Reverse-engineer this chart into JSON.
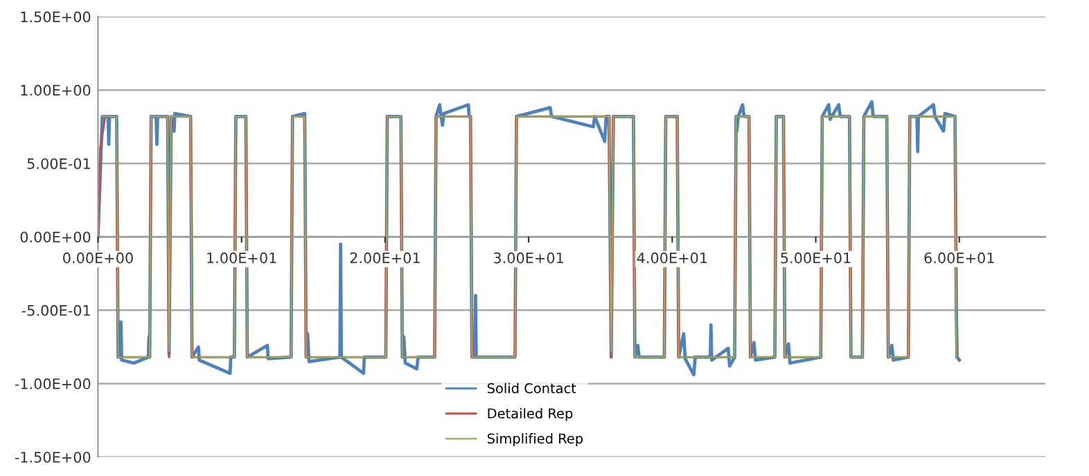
{
  "chart_data": {
    "type": "line",
    "xlim": [
      0,
      66
    ],
    "xticks": [
      {
        "value": 0,
        "label": "0.00E+00"
      },
      {
        "value": 10,
        "label": "1.00E+01"
      },
      {
        "value": 20,
        "label": "2.00E+01"
      },
      {
        "value": 30,
        "label": "3.00E+01"
      },
      {
        "value": 40,
        "label": "4.00E+01"
      },
      {
        "value": 50,
        "label": "5.00E+01"
      },
      {
        "value": 60,
        "label": "6.00E+01"
      }
    ],
    "ylim": [
      -1.5,
      1.5
    ],
    "yticks": [
      {
        "value": 1.5,
        "label": "1.50E+00"
      },
      {
        "value": 1.0,
        "label": "1.00E+00"
      },
      {
        "value": 0.5,
        "label": "5.00E-01"
      },
      {
        "value": 0,
        "label": "0.00E+00"
      },
      {
        "value": -0.5,
        "label": "-5.00E-01"
      },
      {
        "value": -1.0,
        "label": "-1.00E+00"
      },
      {
        "value": -1.5,
        "label": "-1.50E+00"
      }
    ],
    "grid": "y",
    "legend": "bottom",
    "marker": "none",
    "line_style": "solid",
    "series": [
      {
        "name": "Solid Contact",
        "color": "#4f81bd",
        "x": [
          0,
          0.3,
          0.7,
          0.75,
          0.8,
          1.3,
          1.4,
          1.55,
          1.6,
          1.65,
          2.5,
          3.5,
          3.55,
          3.6,
          3.7,
          4.05,
          4.1,
          4.15,
          4.85,
          4.95,
          5.1,
          5.3,
          5.35,
          6.45,
          6.55,
          7.0,
          7.05,
          9.2,
          9.25,
          9.5,
          9.6,
          10.3,
          10.4,
          11.8,
          11.85,
          13.45,
          13.55,
          14.4,
          14.5,
          14.6,
          14.7,
          16.85,
          16.9,
          16.95,
          18.5,
          18.55,
          20.05,
          20.15,
          21.1,
          21.2,
          21.3,
          21.4,
          22.2,
          22.3,
          23.45,
          23.55,
          23.8,
          23.9,
          24.0,
          24.1,
          25.8,
          25.85,
          25.95,
          26.05,
          26.25,
          26.3,
          26.35,
          29.05,
          29.15,
          31.5,
          31.6,
          34.5,
          34.6,
          35.3,
          35.4,
          35.6,
          35.75,
          35.9,
          37.3,
          37.4,
          37.6,
          37.7,
          39.45,
          39.55,
          40.35,
          40.45,
          40.8,
          40.9,
          41.5,
          41.6,
          42.65,
          42.7,
          42.75,
          43.9,
          44.0,
          44.35,
          44.45,
          44.5,
          44.6,
          44.9,
          45.0,
          45.35,
          45.45,
          45.7,
          45.8,
          47.15,
          47.25,
          47.75,
          47.85,
          48.1,
          48.2,
          50.35,
          50.45,
          50.9,
          51.0,
          51.6,
          51.7,
          52.35,
          52.45,
          53.25,
          53.35,
          53.9,
          54.0,
          54.95,
          55.05,
          55.3,
          55.4,
          56.45,
          56.55,
          57.05,
          57.1,
          57.15,
          58.2,
          58.3,
          58.9,
          59.0,
          59.7,
          59.8,
          59.85,
          60.0
        ],
        "values": [
          0,
          0.82,
          0.82,
          0.63,
          0.82,
          0.82,
          -0.82,
          -0.82,
          -0.58,
          -0.84,
          -0.86,
          -0.82,
          -0.68,
          -0.82,
          0.82,
          0.82,
          0.63,
          0.82,
          0.82,
          -0.8,
          0.82,
          0.72,
          0.84,
          0.82,
          -0.82,
          -0.75,
          -0.84,
          -0.93,
          -0.82,
          -0.82,
          0.82,
          0.82,
          -0.82,
          -0.74,
          -0.83,
          -0.82,
          0.82,
          0.84,
          -0.82,
          -0.66,
          -0.85,
          -0.82,
          -0.05,
          -0.82,
          -0.93,
          -0.82,
          -0.82,
          0.82,
          0.82,
          -0.82,
          -0.68,
          -0.86,
          -0.9,
          -0.82,
          -0.82,
          0.82,
          0.9,
          0.82,
          0.76,
          0.84,
          0.9,
          0.82,
          0.82,
          -0.82,
          -0.82,
          -0.4,
          -0.82,
          -0.82,
          0.82,
          0.88,
          0.82,
          0.75,
          0.82,
          0.65,
          0.82,
          0.82,
          -0.82,
          0.82,
          0.82,
          -0.82,
          -0.74,
          -0.82,
          -0.82,
          0.82,
          0.82,
          -0.82,
          -0.66,
          -0.83,
          -0.94,
          -0.82,
          -0.82,
          -0.6,
          -0.84,
          -0.76,
          -0.88,
          -0.82,
          0.82,
          0.72,
          0.82,
          0.9,
          0.82,
          0.82,
          -0.82,
          -0.72,
          -0.84,
          -0.82,
          0.82,
          0.82,
          -0.82,
          -0.73,
          -0.86,
          -0.82,
          0.82,
          0.9,
          0.8,
          0.9,
          0.82,
          0.82,
          -0.82,
          -0.82,
          0.82,
          0.92,
          0.82,
          0.82,
          -0.82,
          -0.74,
          -0.84,
          -0.82,
          0.82,
          0.82,
          0.58,
          0.82,
          0.9,
          0.82,
          0.72,
          0.84,
          0.82,
          -0.55,
          -0.82,
          -0.84
        ]
      },
      {
        "name": "Detailed Rep",
        "color": "#c0504d",
        "x": [
          0,
          0.15,
          0.5,
          1.3,
          1.4,
          3.6,
          3.7,
          4.85,
          4.95,
          5.1,
          6.45,
          6.55,
          9.5,
          9.6,
          10.3,
          10.4,
          13.45,
          13.55,
          14.4,
          14.5,
          20.05,
          20.15,
          21.1,
          21.2,
          23.45,
          23.55,
          25.95,
          26.05,
          29.05,
          29.15,
          35.6,
          35.75,
          35.9,
          37.3,
          37.4,
          39.45,
          39.55,
          40.35,
          40.45,
          44.35,
          44.45,
          45.35,
          45.45,
          47.15,
          47.25,
          47.75,
          47.85,
          50.35,
          50.45,
          52.35,
          52.45,
          53.25,
          53.35,
          54.95,
          55.05,
          56.45,
          56.55,
          59.7,
          59.8
        ],
        "values": [
          0,
          0.6,
          0.82,
          0.82,
          -0.82,
          -0.82,
          0.82,
          0.82,
          -0.82,
          0.82,
          0.82,
          -0.82,
          -0.82,
          0.82,
          0.82,
          -0.82,
          -0.82,
          0.82,
          0.82,
          -0.82,
          -0.82,
          0.82,
          0.82,
          -0.82,
          -0.82,
          0.82,
          0.82,
          -0.82,
          -0.82,
          0.82,
          0.82,
          -0.82,
          0.82,
          0.82,
          -0.82,
          -0.82,
          0.82,
          0.82,
          -0.82,
          -0.82,
          0.82,
          0.82,
          -0.82,
          -0.82,
          0.82,
          0.82,
          -0.82,
          -0.82,
          0.82,
          0.82,
          -0.82,
          -0.82,
          0.82,
          0.82,
          -0.82,
          -0.82,
          0.82,
          0.82,
          -0.82
        ]
      },
      {
        "name": "Simplified Rep",
        "color": "#9bbb59",
        "x": [
          0.3,
          1.3,
          1.4,
          3.6,
          3.7,
          4.85,
          4.95,
          5.1,
          6.45,
          6.55,
          9.5,
          9.6,
          10.3,
          10.4,
          13.45,
          13.55,
          14.4,
          14.5,
          20.05,
          20.15,
          21.1,
          21.2,
          23.45,
          23.55,
          25.95,
          26.05,
          29.05,
          29.15,
          35.6,
          35.75,
          35.9,
          37.3,
          37.4,
          39.45,
          39.55,
          40.35,
          40.45,
          44.35,
          44.45,
          45.35,
          45.45,
          47.15,
          47.25,
          47.75,
          47.85,
          50.35,
          50.45,
          52.35,
          52.45,
          53.25,
          53.35,
          54.95,
          55.05,
          56.45,
          56.55,
          59.7,
          59.8
        ],
        "values": [
          0.82,
          0.82,
          -0.82,
          -0.82,
          0.82,
          0.82,
          -0.78,
          0.82,
          0.82,
          -0.82,
          -0.82,
          0.82,
          0.82,
          -0.82,
          -0.82,
          0.82,
          0.82,
          -0.82,
          -0.82,
          0.82,
          0.82,
          -0.82,
          -0.82,
          0.82,
          0.82,
          -0.82,
          -0.82,
          0.82,
          0.82,
          -0.78,
          0.82,
          0.82,
          -0.82,
          -0.82,
          0.82,
          0.82,
          -0.82,
          -0.82,
          0.82,
          0.82,
          -0.82,
          -0.82,
          0.82,
          0.82,
          -0.82,
          -0.82,
          0.82,
          0.82,
          -0.82,
          -0.82,
          0.82,
          0.82,
          -0.82,
          -0.82,
          0.82,
          0.82,
          -0.82
        ]
      }
    ]
  }
}
